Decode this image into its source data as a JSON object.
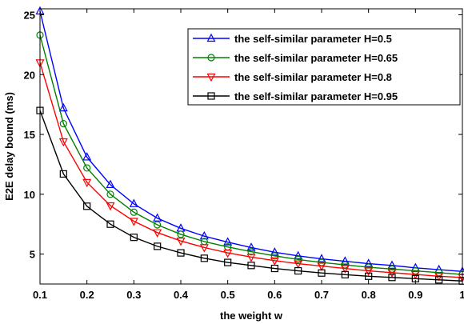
{
  "chart_data": {
    "type": "line",
    "title": "",
    "xlabel": "the weight w",
    "ylabel": "E2E delay bound (ms)",
    "xlim": [
      0.1,
      1
    ],
    "ylim": [
      2.5,
      25.5
    ],
    "xticks": [
      0.1,
      0.2,
      0.3,
      0.4,
      0.5,
      0.6,
      0.7,
      0.8,
      0.9,
      1
    ],
    "xtick_labels": [
      "0.1",
      "0.2",
      "0.3",
      "0.4",
      "0.5",
      "0.6",
      "0.7",
      "0.8",
      "0.9",
      "1"
    ],
    "yticks": [
      5,
      10,
      15,
      20,
      25
    ],
    "ytick_labels": [
      "5",
      "10",
      "15",
      "20",
      "25"
    ],
    "grid": false,
    "legend_position": "top-right",
    "x": [
      0.1,
      0.15,
      0.2,
      0.25,
      0.3,
      0.35,
      0.4,
      0.45,
      0.5,
      0.55,
      0.6,
      0.65,
      0.7,
      0.75,
      0.8,
      0.85,
      0.9,
      0.95,
      1.0
    ],
    "series": [
      {
        "name": "the self-similar parameter H=0.5",
        "color": "#0000ff",
        "marker": "triangle-up",
        "values": [
          25.3,
          17.2,
          13.1,
          10.8,
          9.2,
          8.0,
          7.15,
          6.5,
          6.0,
          5.55,
          5.15,
          4.85,
          4.6,
          4.4,
          4.2,
          4.05,
          3.85,
          3.7,
          3.55
        ]
      },
      {
        "name": "the self-similar parameter H=0.65",
        "color": "#008000",
        "marker": "circle",
        "values": [
          23.3,
          15.9,
          12.2,
          10.0,
          8.5,
          7.45,
          6.65,
          6.05,
          5.6,
          5.2,
          4.85,
          4.55,
          4.3,
          4.1,
          3.9,
          3.75,
          3.6,
          3.45,
          3.3
        ]
      },
      {
        "name": "the self-similar parameter H=0.8",
        "color": "#ff0000",
        "marker": "triangle-down",
        "values": [
          21.0,
          14.4,
          11.0,
          9.05,
          7.75,
          6.8,
          6.1,
          5.55,
          5.1,
          4.75,
          4.45,
          4.2,
          4.0,
          3.8,
          3.6,
          3.45,
          3.3,
          3.15,
          3.05
        ]
      },
      {
        "name": "the self-similar parameter H=0.95",
        "color": "#000000",
        "marker": "square",
        "values": [
          17.0,
          11.7,
          9.0,
          7.5,
          6.4,
          5.65,
          5.1,
          4.65,
          4.3,
          4.05,
          3.8,
          3.6,
          3.42,
          3.28,
          3.15,
          3.05,
          2.95,
          2.85,
          2.75
        ]
      }
    ]
  }
}
